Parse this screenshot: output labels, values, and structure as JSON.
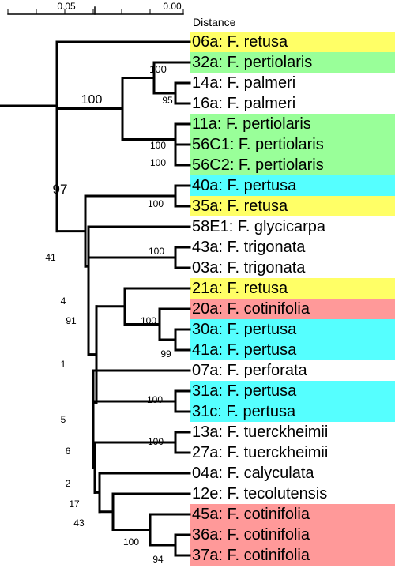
{
  "scale": {
    "title": "Distance",
    "ticks": [
      "0.05",
      "0.00"
    ]
  },
  "colors": {
    "yellow": "#ffff66",
    "green": "#99ff99",
    "cyan": "#55ffff",
    "red": "#ff9999"
  },
  "taxa": [
    {
      "label": "06a: F. retusa",
      "color": "yellow"
    },
    {
      "label": "32a: F. pertiolaris",
      "color": "green"
    },
    {
      "label": "14a: F. palmeri",
      "color": ""
    },
    {
      "label": "16a: F. palmeri",
      "color": ""
    },
    {
      "label": "11a: F. pertiolaris",
      "color": "green"
    },
    {
      "label": "56C1: F. pertiolaris",
      "color": "green"
    },
    {
      "label": "56C2: F. pertiolaris",
      "color": "green"
    },
    {
      "label": "40a: F. pertusa",
      "color": "cyan"
    },
    {
      "label": "35a: F. retusa",
      "color": "yellow"
    },
    {
      "label": "58E1: F. glycicarpa",
      "color": ""
    },
    {
      "label": "43a: F. trigonata",
      "color": ""
    },
    {
      "label": "03a: F. trigonata",
      "color": ""
    },
    {
      "label": "21a: F. retusa",
      "color": "yellow"
    },
    {
      "label": "20a: F. cotinifolia",
      "color": "red"
    },
    {
      "label": "30a: F. pertusa",
      "color": "cyan"
    },
    {
      "label": "41a: F. pertusa",
      "color": "cyan"
    },
    {
      "label": "07a: F. perforata",
      "color": ""
    },
    {
      "label": "31a: F. pertusa",
      "color": "cyan"
    },
    {
      "label": "31c: F. pertusa",
      "color": "cyan"
    },
    {
      "label": "13a: F. tuerckheimii",
      "color": ""
    },
    {
      "label": "27a: F. tuerckheimii",
      "color": ""
    },
    {
      "label": "04a: F. calyculata",
      "color": ""
    },
    {
      "label": "12e: F. tecolutensis",
      "color": ""
    },
    {
      "label": "45a: F. cotinifolia",
      "color": "red"
    },
    {
      "label": "36a: F. cotinifolia",
      "color": "red"
    },
    {
      "label": "37a: F. cotinifolia",
      "color": "red"
    }
  ],
  "support_values": [
    "100",
    "95",
    "100",
    "100",
    "100",
    "97",
    "100",
    "41",
    "100",
    "4",
    "91",
    "100",
    "99",
    "1",
    "100",
    "5",
    "100",
    "6",
    "2",
    "17",
    "43",
    "100",
    "94"
  ]
}
